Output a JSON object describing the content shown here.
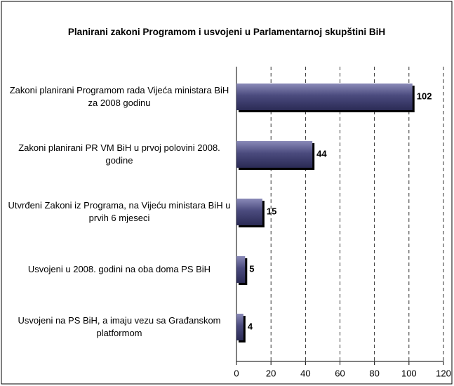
{
  "chart_data": {
    "type": "bar",
    "orientation": "horizontal",
    "title": "Planirani zakoni Programom i usvojeni u Parlamentarnoj skupštini BiH",
    "categories": [
      "Zakoni planirani Programom rada Vijeća ministara BiH za 2008 godinu",
      "Zakoni planirani PR VM BiH u prvoj polovini 2008. godine",
      "Utvrđeni Zakoni iz Programa, na Vijeću ministara BiH u prvih 6 mjeseci",
      "Usvojeni u 2008. godini na oba doma PS BiH",
      "Usvojeni na PS BiH, a imaju vezu sa Građanskom platformom"
    ],
    "values": [
      102,
      44,
      15,
      5,
      4
    ],
    "color": "#4b4b7e",
    "xlim": [
      0,
      120
    ],
    "xticks": [
      0,
      20,
      40,
      60,
      80,
      100,
      120
    ],
    "grid": true
  }
}
